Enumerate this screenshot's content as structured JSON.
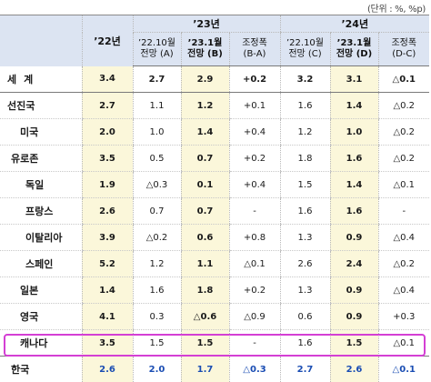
{
  "unit_note": "(단위 : %, %p)",
  "header": {
    "col_2022": "’22년",
    "group_2023": "’23년",
    "group_2024": "’24년",
    "h23_a_l1": "’22.10월",
    "h23_a_l2": "전망 (A)",
    "h23_b_l1": "’23.1월",
    "h23_b_l2": "전망 (B)",
    "h23_c_l1": "조정폭",
    "h23_c_l2": "(B-A)",
    "h24_a_l1": "’22.10월",
    "h24_a_l2": "전망 (C)",
    "h24_b_l1": "’23.1월",
    "h24_b_l2": "전망 (D)",
    "h24_c_l1": "조정폭",
    "h24_c_l2": "(D-C)"
  },
  "rows": [
    {
      "name": "세계",
      "y22": "3.4",
      "a23": "2.7",
      "b23": "2.9",
      "c23": "+0.2",
      "a24": "3.2",
      "b24": "3.1",
      "c24": "△0.1"
    },
    {
      "name": "선진국",
      "y22": "2.7",
      "a23": "1.1",
      "b23": "1.2",
      "c23": "+0.1",
      "a24": "1.6",
      "b24": "1.4",
      "c24": "△0.2"
    },
    {
      "name": "미국",
      "y22": "2.0",
      "a23": "1.0",
      "b23": "1.4",
      "c23": "+0.4",
      "a24": "1.2",
      "b24": "1.0",
      "c24": "△0.2"
    },
    {
      "name": "유로존",
      "y22": "3.5",
      "a23": "0.5",
      "b23": "0.7",
      "c23": "+0.2",
      "a24": "1.8",
      "b24": "1.6",
      "c24": "△0.2"
    },
    {
      "name": "독일",
      "y22": "1.9",
      "a23": "△0.3",
      "b23": "0.1",
      "c23": "+0.4",
      "a24": "1.5",
      "b24": "1.4",
      "c24": "△0.1"
    },
    {
      "name": "프랑스",
      "y22": "2.6",
      "a23": "0.7",
      "b23": "0.7",
      "c23": "-",
      "a24": "1.6",
      "b24": "1.6",
      "c24": "-"
    },
    {
      "name": "이탈리아",
      "y22": "3.9",
      "a23": "△0.2",
      "b23": "0.6",
      "c23": "+0.8",
      "a24": "1.3",
      "b24": "0.9",
      "c24": "△0.4"
    },
    {
      "name": "스페인",
      "y22": "5.2",
      "a23": "1.2",
      "b23": "1.1",
      "c23": "△0.1",
      "a24": "2.6",
      "b24": "2.4",
      "c24": "△0.2"
    },
    {
      "name": "일본",
      "y22": "1.4",
      "a23": "1.6",
      "b23": "1.8",
      "c23": "+0.2",
      "a24": "1.3",
      "b24": "0.9",
      "c24": "△0.4"
    },
    {
      "name": "영국",
      "y22": "4.1",
      "a23": "0.3",
      "b23": "△0.6",
      "c23": "△0.9",
      "a24": "0.6",
      "b24": "0.9",
      "c24": "+0.3"
    },
    {
      "name": "캐나다",
      "y22": "3.5",
      "a23": "1.5",
      "b23": "1.5",
      "c23": "-",
      "a24": "1.6",
      "b24": "1.5",
      "c24": "△0.1"
    },
    {
      "name": "한국",
      "y22": "2.6",
      "a23": "2.0",
      "b23": "1.7",
      "c23": "△0.3",
      "a24": "2.7",
      "b24": "2.6",
      "c24": "△0.1"
    }
  ]
}
